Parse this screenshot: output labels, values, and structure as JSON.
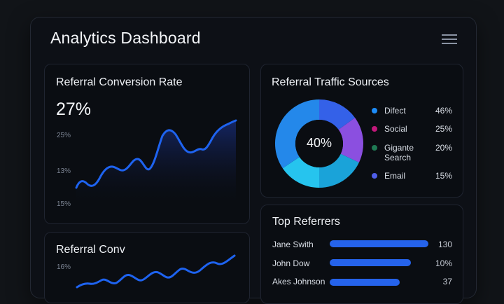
{
  "header": {
    "title": "Analytics Dashboard"
  },
  "conversion_card": {
    "title": "Referral Conversion Rate",
    "value": "27%",
    "ticks": [
      "25%",
      "13%",
      "15%"
    ]
  },
  "traffic_card": {
    "title": "Referral Traffic Sources",
    "center_label": "40%",
    "legend": [
      {
        "label": "Difect",
        "pct": "46%",
        "color": "#1d8cf8"
      },
      {
        "label": "Social",
        "pct": "25%",
        "color": "#c2187a"
      },
      {
        "label": "Gigante Search",
        "pct": "20%",
        "color": "#1f7a54"
      },
      {
        "label": "Email",
        "pct": "15%",
        "color": "#4f5ee8"
      }
    ]
  },
  "second_card": {
    "title": "Referral Conv",
    "tick": "16%"
  },
  "referrers_card": {
    "title": "Top Referrers",
    "rows": [
      {
        "name": "Jane Swith",
        "value": "130"
      },
      {
        "name": "John Dow",
        "value": "10%"
      },
      {
        "name": "Akes Johnson",
        "value": "37"
      }
    ]
  },
  "colors": {
    "accent": "#2563eb",
    "background": "#111418"
  }
}
